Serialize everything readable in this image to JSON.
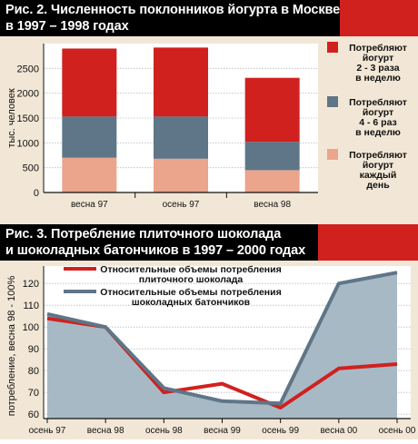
{
  "chart_data": [
    {
      "type": "bar",
      "stacked": true,
      "title_lines": [
        "Рис. 2. Численность поклонников йогурта в Москве",
        "в 1997 – 1998 годах"
      ],
      "ylabel": "тыс. человек",
      "ylim": [
        0,
        3000
      ],
      "yticks": [
        0,
        500,
        1000,
        1500,
        2000,
        2500
      ],
      "categories": [
        "весна 97",
        "осень 97",
        "весна 98"
      ],
      "series": [
        {
          "name_lines": [
            "Потребляют",
            "йогурт",
            "каждый",
            "день"
          ],
          "color": "#eaa58c",
          "values": [
            700,
            680,
            450
          ]
        },
        {
          "name_lines": [
            "Потребляют",
            "йогурт",
            "4 - 6 раз",
            "в неделю"
          ],
          "color": "#5e7687",
          "values": [
            830,
            850,
            570
          ]
        },
        {
          "name_lines": [
            "Потребляют",
            "йогурт",
            "2 - 3 раза",
            "в неделю"
          ],
          "color": "#d0211f",
          "values": [
            1370,
            1390,
            1290
          ]
        }
      ]
    },
    {
      "type": "line",
      "title_lines": [
        "Рис. 3. Потребление плиточного шоколада",
        "и шоколадных батончиков в 1997 – 2000 годах"
      ],
      "ylabel": "потребление, весна 98 - 100%",
      "ylim": [
        58,
        128
      ],
      "yticks": [
        60,
        70,
        80,
        90,
        100,
        110,
        120
      ],
      "categories": [
        "осень 97",
        "весна 98",
        "осень 98",
        "весна 99",
        "осень 99",
        "весна 00",
        "осень 00"
      ],
      "series": [
        {
          "name_lines": [
            "Относительные объемы потребления",
            "плиточного шоколада"
          ],
          "color": "#d0211f",
          "values": [
            104,
            100,
            70,
            74,
            63,
            81,
            83
          ]
        },
        {
          "name_lines": [
            "Относительные объемы потребления",
            "шоколадных батончиков"
          ],
          "color": "#5e7687",
          "fill": "#a8b9c6",
          "values": [
            106,
            100,
            72,
            66,
            65,
            120,
            125
          ]
        }
      ]
    }
  ]
}
